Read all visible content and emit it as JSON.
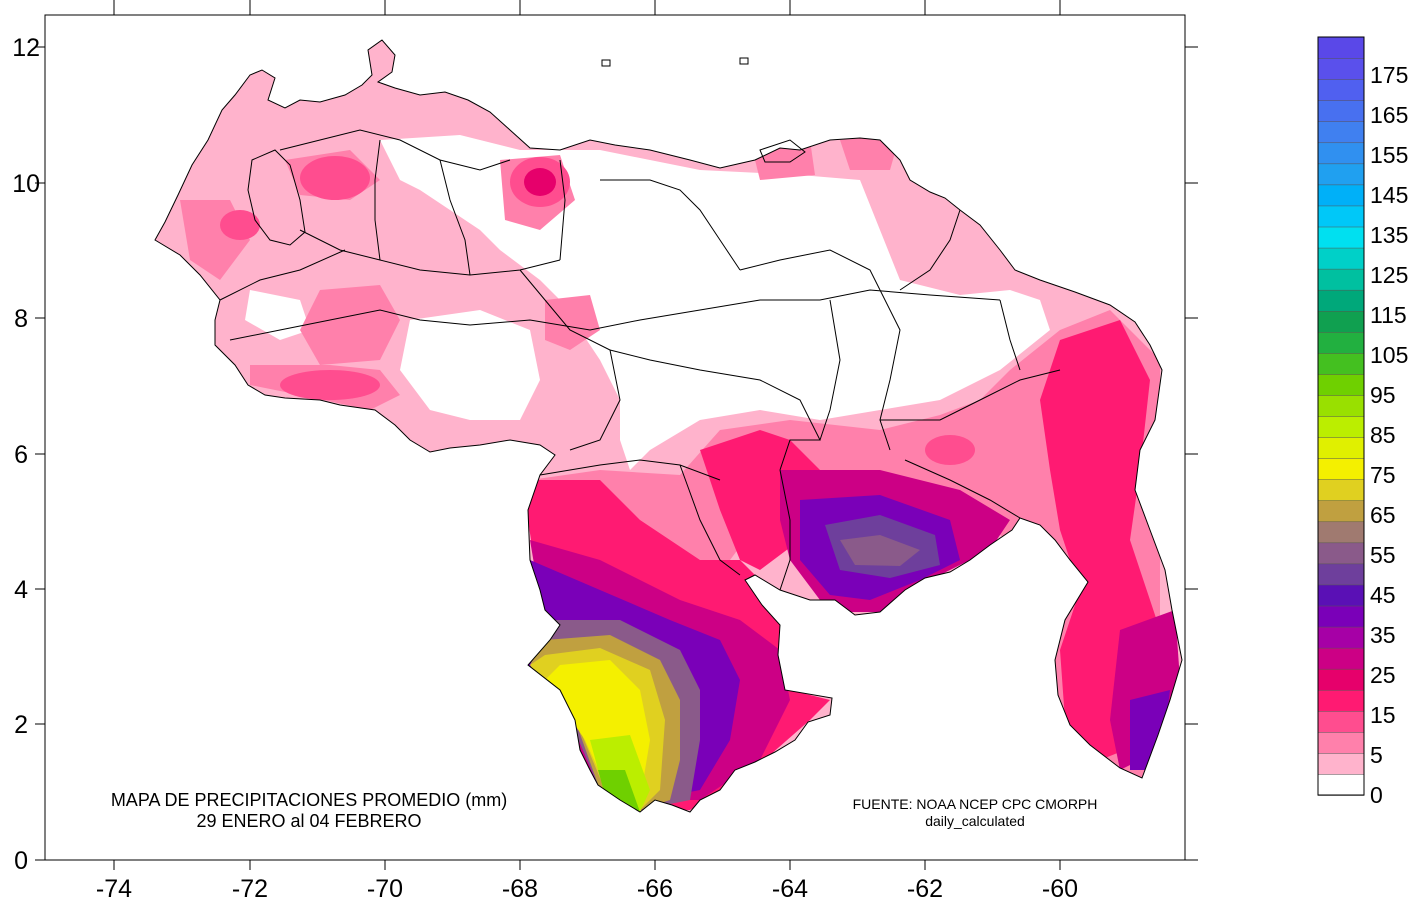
{
  "map": {
    "lon_ticks": [
      "-74",
      "-72",
      "-70",
      "-68",
      "-66",
      "-64",
      "-62",
      "-60"
    ],
    "lat_ticks": [
      "0",
      "2",
      "4",
      "6",
      "8",
      "10",
      "12"
    ],
    "caption": {
      "line1": "MAPA DE PRECIPITACIONES PROMEDIO (mm)",
      "line2": "29 ENERO al 04 FEBRERO"
    },
    "source": {
      "line1": "FUENTE: NOAA NCEP CPC CMORPH",
      "line2": "daily_calculated"
    }
  },
  "colorbar": {
    "labels": [
      "0",
      "5",
      "15",
      "25",
      "35",
      "45",
      "55",
      "65",
      "75",
      "85",
      "95",
      "105",
      "115",
      "125",
      "135",
      "145",
      "155",
      "165",
      "175"
    ],
    "colors": [
      "#ffffff",
      "#ffb3cc",
      "#ff80ab",
      "#ff4d8f",
      "#ff1a72",
      "#e6006b",
      "#cc0085",
      "#a600a6",
      "#7a00b8",
      "#5a10b5",
      "#6e3f9c",
      "#8a5a8a",
      "#a07a70",
      "#c0a040",
      "#e0d020",
      "#f4f000",
      "#e0f000",
      "#bbee00",
      "#99e000",
      "#6fd000",
      "#44c020",
      "#22b040",
      "#10a050",
      "#00a87a",
      "#00c0a0",
      "#00d0c8",
      "#00e0f0",
      "#00c8f8",
      "#00b0f8",
      "#20a0f0",
      "#3090f0",
      "#4080f0",
      "#4870f0",
      "#5060f0",
      "#5a50ec",
      "#5a48e8"
    ]
  }
}
